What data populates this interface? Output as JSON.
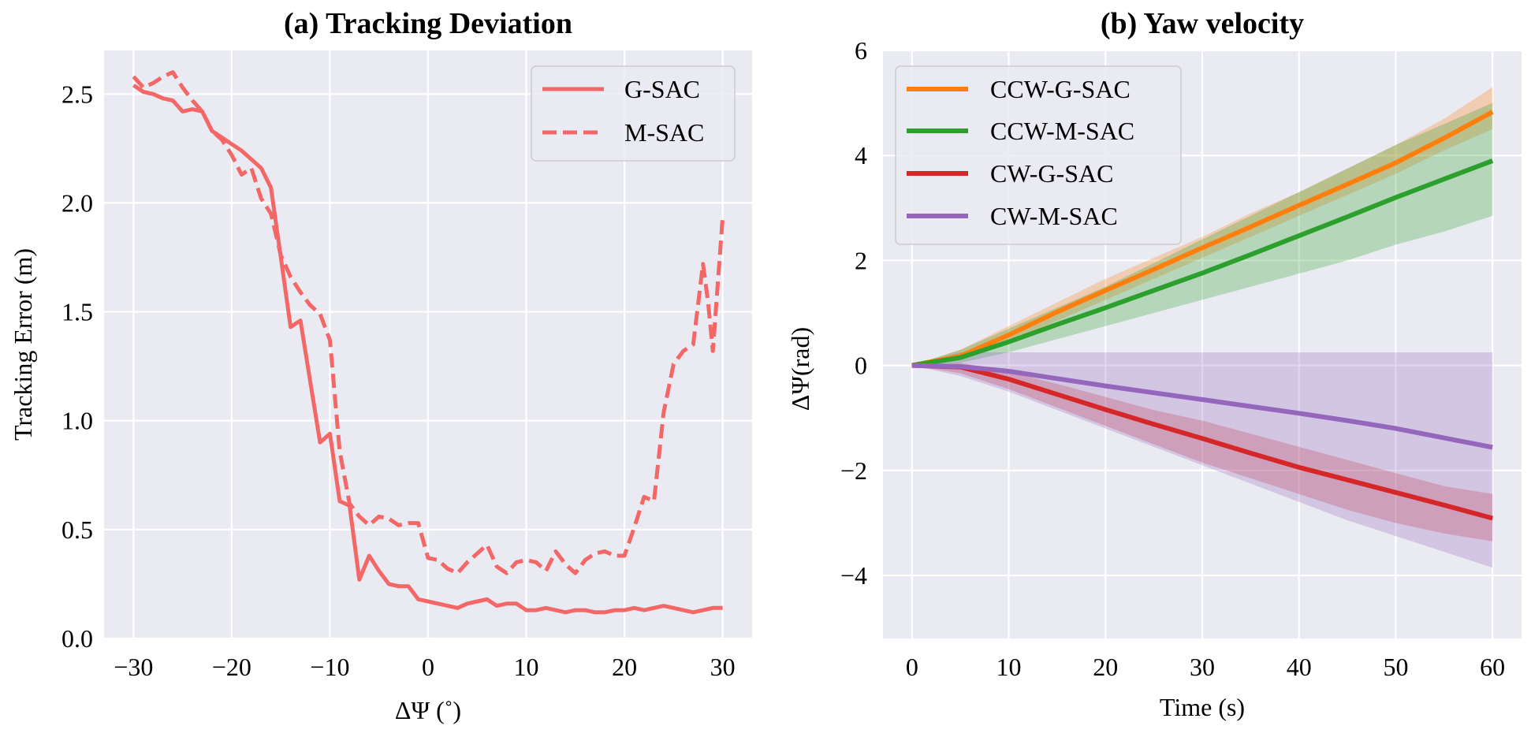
{
  "chart_data": [
    {
      "type": "line",
      "title": "(a)  Tracking Deviation",
      "xlabel": "ΔΨ (˚)",
      "ylabel": "Tracking Error (m)",
      "xlim": [
        -33,
        33
      ],
      "ylim": [
        0,
        2.7
      ],
      "xticks": [
        -30,
        -20,
        -10,
        0,
        10,
        20,
        30
      ],
      "xtick_labels": [
        "−30",
        "−20",
        "−10",
        "0",
        "10",
        "20",
        "30"
      ],
      "yticks": [
        0,
        0.5,
        1,
        1.5,
        2,
        2.5
      ],
      "ytick_labels": [
        "0.0",
        "0.5",
        "1.0",
        "1.5",
        "2.0",
        "2.5"
      ],
      "grid": true,
      "legend_position": "top-right",
      "series": [
        {
          "name": "G-SAC",
          "style": "solid",
          "color": "#f46767",
          "x": [
            -30,
            -29,
            -28,
            -27,
            -26,
            -25,
            -24,
            -23,
            -22,
            -21,
            -20,
            -19,
            -18,
            -17,
            -16,
            -15,
            -14,
            -13,
            -12,
            -11,
            -10,
            -9,
            -8,
            -7,
            -6,
            -5,
            -4,
            -3,
            -2,
            -1,
            0,
            1,
            2,
            3,
            4,
            5,
            6,
            7,
            8,
            9,
            10,
            11,
            12,
            13,
            14,
            15,
            16,
            17,
            18,
            19,
            20,
            21,
            22,
            23,
            24,
            25,
            26,
            27,
            28,
            29,
            30
          ],
          "y": [
            2.54,
            2.51,
            2.5,
            2.48,
            2.47,
            2.42,
            2.43,
            2.42,
            2.33,
            2.3,
            2.27,
            2.24,
            2.2,
            2.16,
            2.07,
            1.75,
            1.43,
            1.46,
            1.18,
            0.9,
            0.94,
            0.63,
            0.61,
            0.27,
            0.38,
            0.31,
            0.25,
            0.24,
            0.24,
            0.18,
            0.17,
            0.16,
            0.15,
            0.14,
            0.16,
            0.17,
            0.18,
            0.15,
            0.16,
            0.16,
            0.13,
            0.13,
            0.14,
            0.13,
            0.12,
            0.13,
            0.13,
            0.12,
            0.12,
            0.13,
            0.13,
            0.14,
            0.13,
            0.14,
            0.15,
            0.14,
            0.13,
            0.12,
            0.13,
            0.14,
            0.14
          ]
        },
        {
          "name": "M-SAC",
          "style": "dashed",
          "color": "#f46767",
          "x": [
            -30,
            -29,
            -28,
            -27,
            -26,
            -25,
            -24,
            -23,
            -22,
            -21,
            -20,
            -19,
            -18,
            -17,
            -16,
            -15,
            -14,
            -13,
            -12,
            -11,
            -10,
            -9,
            -8,
            -7,
            -6,
            -5,
            -4,
            -3,
            -2,
            -1,
            0,
            1,
            2,
            3,
            4,
            5,
            6,
            7,
            8,
            9,
            10,
            11,
            12,
            13,
            14,
            15,
            16,
            17,
            18,
            19,
            20,
            21,
            22,
            23,
            24,
            25,
            26,
            27,
            28,
            28.5,
            29,
            30
          ],
          "y": [
            2.58,
            2.53,
            2.55,
            2.58,
            2.6,
            2.53,
            2.47,
            2.42,
            2.33,
            2.29,
            2.22,
            2.13,
            2.16,
            2.02,
            1.95,
            1.76,
            1.66,
            1.59,
            1.53,
            1.49,
            1.37,
            0.86,
            0.62,
            0.56,
            0.52,
            0.56,
            0.55,
            0.52,
            0.53,
            0.53,
            0.37,
            0.36,
            0.32,
            0.3,
            0.35,
            0.39,
            0.43,
            0.33,
            0.3,
            0.35,
            0.36,
            0.35,
            0.31,
            0.4,
            0.34,
            0.3,
            0.36,
            0.39,
            0.4,
            0.38,
            0.38,
            0.51,
            0.65,
            0.63,
            1.04,
            1.26,
            1.32,
            1.35,
            1.72,
            1.55,
            1.32,
            1.93
          ]
        }
      ]
    },
    {
      "type": "line",
      "title": "(b)  Yaw velocity",
      "xlabel": "Time (s)",
      "ylabel": "ΔΨ(rad)",
      "xlim": [
        -3,
        63
      ],
      "ylim": [
        -5.2,
        6
      ],
      "xticks": [
        0,
        10,
        20,
        30,
        40,
        50,
        60
      ],
      "xtick_labels": [
        "0",
        "10",
        "20",
        "30",
        "40",
        "50",
        "60"
      ],
      "yticks": [
        -4,
        -2,
        0,
        2,
        4,
        6
      ],
      "ytick_labels": [
        "−4",
        "−2",
        "0",
        "2",
        "4",
        "6"
      ],
      "grid": true,
      "legend_position": "top-left",
      "series": [
        {
          "name": "CCW-G-SAC",
          "color": "#ff7f0e",
          "x": [
            0,
            5,
            10,
            15,
            20,
            25,
            30,
            35,
            40,
            45,
            50,
            55,
            60
          ],
          "y": [
            0,
            0.18,
            0.58,
            1.02,
            1.43,
            1.83,
            2.24,
            2.64,
            3.05,
            3.45,
            3.86,
            4.33,
            4.83
          ],
          "band_low": [
            0,
            0.1,
            0.45,
            0.85,
            1.25,
            1.65,
            2.05,
            2.45,
            2.85,
            3.25,
            3.65,
            4.1,
            4.5
          ],
          "band_high": [
            0,
            0.3,
            0.75,
            1.2,
            1.65,
            2.05,
            2.45,
            2.9,
            3.3,
            3.75,
            4.2,
            4.7,
            5.3
          ]
        },
        {
          "name": "CCW-M-SAC",
          "color": "#2ca02c",
          "x": [
            0,
            5,
            10,
            15,
            20,
            25,
            30,
            35,
            40,
            45,
            50,
            55,
            60
          ],
          "y": [
            0,
            0.15,
            0.45,
            0.78,
            1.1,
            1.43,
            1.76,
            2.11,
            2.47,
            2.83,
            3.2,
            3.55,
            3.9
          ],
          "band_low": [
            0,
            0.05,
            0.25,
            0.5,
            0.75,
            1.0,
            1.25,
            1.5,
            1.75,
            2.0,
            2.3,
            2.55,
            2.85
          ],
          "band_high": [
            0,
            0.3,
            0.7,
            1.1,
            1.5,
            1.95,
            2.4,
            2.85,
            3.3,
            3.75,
            4.2,
            4.6,
            5.0
          ]
        },
        {
          "name": "CW-G-SAC",
          "color": "#d62728",
          "x": [
            0,
            5,
            10,
            15,
            20,
            25,
            30,
            35,
            40,
            45,
            50,
            55,
            60
          ],
          "y": [
            0,
            -0.03,
            -0.26,
            -0.55,
            -0.84,
            -1.12,
            -1.39,
            -1.67,
            -1.94,
            -2.18,
            -2.42,
            -2.66,
            -2.91
          ],
          "band_low": [
            0,
            -0.15,
            -0.45,
            -0.8,
            -1.15,
            -1.5,
            -1.85,
            -2.15,
            -2.45,
            -2.75,
            -3.0,
            -3.2,
            -3.35
          ],
          "band_high": [
            0,
            0.05,
            -0.12,
            -0.35,
            -0.6,
            -0.85,
            -1.05,
            -1.3,
            -1.55,
            -1.8,
            -2.05,
            -2.3,
            -2.45
          ]
        },
        {
          "name": "CW-M-SAC",
          "color": "#9467bd",
          "x": [
            0,
            5,
            10,
            15,
            20,
            25,
            30,
            35,
            40,
            45,
            50,
            55,
            60
          ],
          "y": [
            0,
            -0.02,
            -0.11,
            -0.25,
            -0.39,
            -0.52,
            -0.65,
            -0.78,
            -0.91,
            -1.05,
            -1.2,
            -1.38,
            -1.56
          ],
          "band_low": [
            0,
            -0.2,
            -0.5,
            -0.85,
            -1.2,
            -1.55,
            -1.9,
            -2.25,
            -2.6,
            -2.95,
            -3.25,
            -3.55,
            -3.85
          ],
          "band_high": [
            0,
            0.25,
            0.25,
            0.25,
            0.25,
            0.25,
            0.25,
            0.25,
            0.25,
            0.25,
            0.25,
            0.25,
            0.25
          ]
        }
      ]
    }
  ]
}
